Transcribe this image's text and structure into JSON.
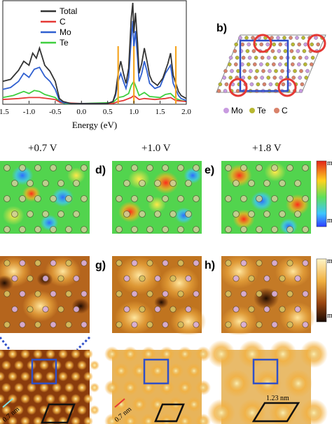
{
  "chart_data": {
    "type": "line",
    "xlabel": "Energy (eV)",
    "xlim": [
      -1.5,
      2.0
    ],
    "x_ticks": [
      "-1.5",
      "-1.0",
      "-0.5",
      "0.0",
      "0.5",
      "1.0",
      "1.5",
      "2.0"
    ],
    "x_tick_values": [
      -1.5,
      -1.0,
      -0.5,
      0.0,
      0.5,
      1.0,
      1.5,
      2.0
    ],
    "series": [
      {
        "name": "Total",
        "color": "#333333",
        "x": [
          -1.5,
          -1.35,
          -1.2,
          -1.1,
          -1.0,
          -0.93,
          -0.86,
          -0.8,
          -0.7,
          -0.6,
          -0.5,
          -0.42,
          -0.35,
          -0.2,
          0.0,
          0.3,
          0.5,
          0.6,
          0.65,
          0.7,
          0.75,
          0.8,
          0.85,
          0.9,
          0.95,
          0.98,
          1.0,
          1.03,
          1.07,
          1.1,
          1.15,
          1.2,
          1.25,
          1.3,
          1.35,
          1.45,
          1.55,
          1.65,
          1.7,
          1.75,
          1.85,
          1.9,
          2.0
        ],
        "y": [
          0.22,
          0.24,
          0.33,
          0.42,
          0.38,
          0.5,
          0.45,
          0.55,
          0.38,
          0.32,
          0.22,
          0.05,
          0.02,
          0.0,
          0.0,
          0.0,
          0.0,
          0.02,
          0.1,
          0.3,
          0.42,
          0.3,
          0.2,
          0.35,
          0.85,
          1.0,
          0.7,
          0.9,
          0.6,
          0.3,
          0.4,
          0.55,
          0.42,
          0.28,
          0.22,
          0.18,
          0.25,
          0.4,
          0.5,
          0.28,
          0.12,
          0.08,
          0.05
        ]
      },
      {
        "name": "C",
        "color": "#e53935",
        "x": [
          -1.5,
          -1.2,
          -1.0,
          -0.8,
          -0.5,
          -0.4,
          0.0,
          0.6,
          0.7,
          0.8,
          0.95,
          1.0,
          1.1,
          1.2,
          1.4,
          1.6,
          1.7,
          1.8,
          2.0
        ],
        "y": [
          0.04,
          0.05,
          0.06,
          0.06,
          0.04,
          0.01,
          0.0,
          0.0,
          0.02,
          0.03,
          0.06,
          0.08,
          0.04,
          0.05,
          0.04,
          0.05,
          0.06,
          0.03,
          0.02
        ]
      },
      {
        "name": "Mo",
        "color": "#2f5fd0",
        "x": [
          -1.5,
          -1.35,
          -1.2,
          -1.1,
          -1.0,
          -0.9,
          -0.8,
          -0.7,
          -0.6,
          -0.5,
          -0.42,
          -0.35,
          -0.2,
          0.0,
          0.5,
          0.6,
          0.65,
          0.7,
          0.75,
          0.8,
          0.85,
          0.9,
          0.95,
          0.98,
          1.0,
          1.03,
          1.07,
          1.1,
          1.15,
          1.2,
          1.25,
          1.3,
          1.4,
          1.5,
          1.6,
          1.7,
          1.75,
          1.85,
          1.9,
          2.0
        ],
        "y": [
          0.14,
          0.16,
          0.22,
          0.3,
          0.26,
          0.34,
          0.36,
          0.27,
          0.22,
          0.14,
          0.03,
          0.01,
          0.0,
          0.0,
          0.0,
          0.02,
          0.08,
          0.22,
          0.3,
          0.22,
          0.15,
          0.26,
          0.65,
          0.82,
          0.55,
          0.72,
          0.45,
          0.22,
          0.3,
          0.42,
          0.32,
          0.2,
          0.15,
          0.17,
          0.3,
          0.38,
          0.2,
          0.08,
          0.05,
          0.03
        ]
      },
      {
        "name": "Te",
        "color": "#3fcf3f",
        "x": [
          -1.5,
          -1.3,
          -1.1,
          -1.0,
          -0.9,
          -0.8,
          -0.7,
          -0.5,
          -0.4,
          -0.3,
          0.0,
          0.6,
          0.7,
          0.8,
          0.9,
          0.95,
          1.0,
          1.05,
          1.1,
          1.2,
          1.3,
          1.5,
          1.6,
          1.7,
          1.8,
          1.9,
          2.0
        ],
        "y": [
          0.06,
          0.08,
          0.12,
          0.1,
          0.13,
          0.12,
          0.09,
          0.06,
          0.01,
          0.0,
          0.0,
          0.01,
          0.06,
          0.07,
          0.1,
          0.18,
          0.22,
          0.15,
          0.08,
          0.11,
          0.07,
          0.06,
          0.09,
          0.1,
          0.05,
          0.03,
          0.02
        ]
      }
    ],
    "markers": {
      "color": "#f5a623",
      "x": [
        0.7,
        1.0,
        1.8
      ]
    }
  },
  "panel_b": {
    "label": "b)",
    "legend": [
      {
        "name": "Mo",
        "color": "#c89be0"
      },
      {
        "name": "Te",
        "color": "#b8b832"
      },
      {
        "name": "C",
        "color": "#d9826a"
      }
    ]
  },
  "voltages": [
    "+0.7 V",
    "+1.0 V",
    "+1.8 V"
  ],
  "row2_labels": [
    "d)",
    "e)"
  ],
  "row3_labels": [
    "g)",
    "h)"
  ],
  "colorbar_top": [
    "m",
    "m"
  ],
  "colorbar_mid": [
    "m",
    "m"
  ],
  "scale_labels": [
    "0.7 nm",
    "0.7 nm",
    "1.23 nm"
  ]
}
